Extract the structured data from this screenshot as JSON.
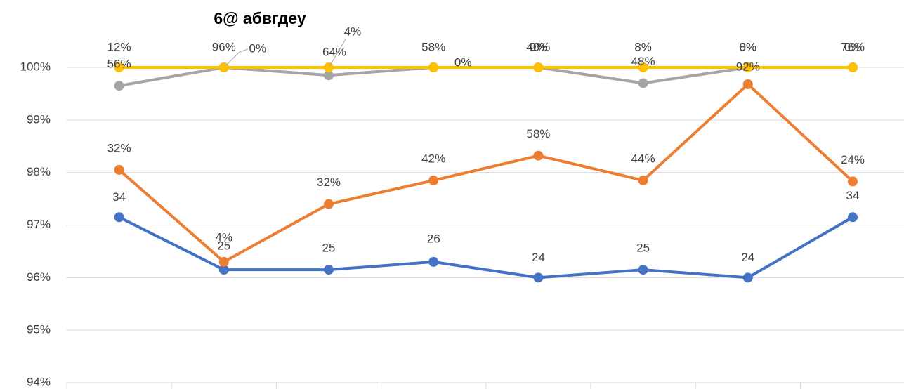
{
  "chart_data": {
    "type": "line",
    "title": "6@ абвгдеу",
    "categories": [
      null,
      null,
      null,
      null,
      null,
      null,
      null,
      null
    ],
    "ylim": [
      94,
      100
    ],
    "yticks": [
      {
        "value": 94,
        "label": "94%"
      },
      {
        "value": 95,
        "label": "95%"
      },
      {
        "value": 96,
        "label": "96%"
      },
      {
        "value": 97,
        "label": "97%"
      },
      {
        "value": 98,
        "label": "98%"
      },
      {
        "value": 99,
        "label": "99%"
      },
      {
        "value": 100,
        "label": "100%"
      }
    ],
    "grid": true,
    "series": [
      {
        "color": "#4472c4",
        "values": [
          97.15,
          96.15,
          96.15,
          96.3,
          96.0,
          96.15,
          96.0,
          97.15
        ],
        "point_labels": [
          "34",
          "25",
          "25",
          "26",
          "24",
          "25",
          "24",
          "34"
        ]
      },
      {
        "color": "#ed7d31",
        "values": [
          98.05,
          96.3,
          97.4,
          97.85,
          98.32,
          97.85,
          99.68,
          97.83
        ],
        "point_labels": [
          "32%",
          "4%",
          "32%",
          "42%",
          "58%",
          "44%",
          "92%",
          "24%"
        ]
      },
      {
        "color": "#a5a5a5",
        "values": [
          99.65,
          100,
          99.85,
          100,
          100,
          99.7,
          100,
          100
        ],
        "point_labels": [
          "56%",
          "0%",
          "64%",
          "0%",
          "0%",
          "48%",
          "0%",
          "0%"
        ]
      },
      {
        "color": "#ffc000",
        "values": [
          100,
          100,
          100,
          100,
          100,
          100,
          100,
          100
        ],
        "point_labels": [
          "12%",
          "96%",
          "4%",
          "58%",
          "40%",
          "8%",
          "8%",
          "76%"
        ]
      }
    ]
  }
}
